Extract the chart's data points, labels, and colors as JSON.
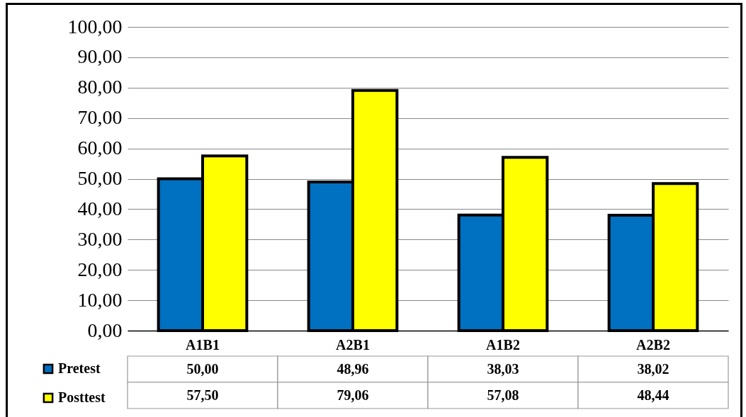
{
  "chart_data": {
    "type": "bar",
    "categories": [
      "A1B1",
      "A2B1",
      "A1B2",
      "A2B2"
    ],
    "series": [
      {
        "name": "Pretest",
        "color": "#0070c0",
        "values": [
          50,
          48.96,
          38.03,
          38.02
        ],
        "value_labels": [
          "50,00",
          "48,96",
          "38,03",
          "38,02"
        ]
      },
      {
        "name": "Posttest",
        "color": "#ffff00",
        "values": [
          57.5,
          79.06,
          57.08,
          48.44
        ],
        "value_labels": [
          "57,50",
          "79,06",
          "57,08",
          "48,44"
        ]
      }
    ],
    "ylim": [
      0,
      100
    ],
    "yticks": [
      {
        "value": 0,
        "label": "0,00"
      },
      {
        "value": 10,
        "label": "10,00"
      },
      {
        "value": 20,
        "label": "20,00"
      },
      {
        "value": 30,
        "label": "30,00"
      },
      {
        "value": 40,
        "label": "40,00"
      },
      {
        "value": 50,
        "label": "50,00"
      },
      {
        "value": 60,
        "label": "60,00"
      },
      {
        "value": 70,
        "label": "70,00"
      },
      {
        "value": 80,
        "label": "80,00"
      },
      {
        "value": 90,
        "label": "90,00"
      },
      {
        "value": 100,
        "label": "100,00"
      }
    ],
    "grid": "y",
    "legend": "bottom left"
  }
}
